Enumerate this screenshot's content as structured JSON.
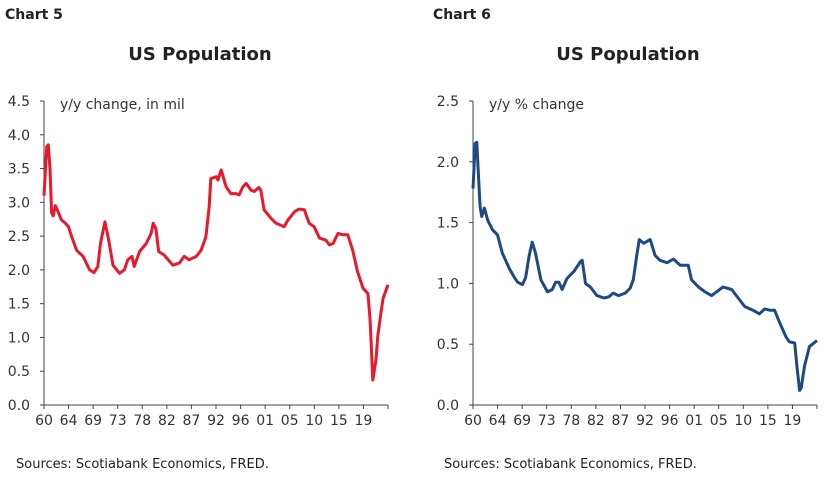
{
  "chart_data": [
    {
      "type": "line",
      "label": "Chart 5",
      "title": "US Population",
      "ylabel": "y/y change, in mil",
      "source": "Sources: Scotiabank Economics, FRED.",
      "xlim": [
        1960,
        2023.3
      ],
      "ylim": [
        0,
        4.5
      ],
      "yticks": [
        "0.0",
        "0.5",
        "1.0",
        "1.5",
        "2.0",
        "2.5",
        "3.0",
        "3.5",
        "4.0",
        "4.5"
      ],
      "xtick_labels": [
        "60",
        "64",
        "69",
        "73",
        "78",
        "82",
        "87",
        "92",
        "96",
        "01",
        "05",
        "10",
        "15",
        "19"
      ],
      "grid": false,
      "color": "#e8192c",
      "series": [
        {
          "x": [
            1960,
            1960.5,
            1960.8,
            1961.1,
            1961.4,
            1961.7,
            1962.1,
            1962.6,
            1963.2,
            1963.8,
            1964.5,
            1965.1,
            1966,
            1967.2,
            1968.4,
            1969.2,
            1969.9,
            1970.4,
            1971.2,
            1971.8,
            1972.7,
            1973.9,
            1974.8,
            1975.4,
            1976.2,
            1976.6,
            1977.6,
            1978.8,
            1979.7,
            1980.1,
            1980.6,
            1981.1,
            1982.1,
            1983.7,
            1984.9,
            1985.8,
            1986.7,
            1988,
            1988.9,
            1989.8,
            1990.4,
            1990.7,
            1991.7,
            1992,
            1992.6,
            1993.5,
            1994.4,
            1995.3,
            1995.9,
            1996.6,
            1997.2,
            1998.1,
            1998.7,
            1999.5,
            1999.9,
            2000.5,
            2001.8,
            2002.7,
            2003.6,
            2004.2,
            2004.9,
            2006.1,
            2006.9,
            2007.9,
            2008.8,
            2009.7,
            2010.7,
            2011.9,
            2012.5,
            2013.2,
            2014.1,
            2015,
            2015.9,
            2016.8,
            2017.7,
            2018.7,
            2019.6,
            2020,
            2020.5,
            2021.1,
            2021.4,
            2022,
            2022.4,
            2023.3
          ],
          "y": [
            3.1,
            3.82,
            3.85,
            3.5,
            2.85,
            2.8,
            2.95,
            2.86,
            2.74,
            2.7,
            2.64,
            2.49,
            2.29,
            2.2,
            2.0,
            1.96,
            2.05,
            2.39,
            2.71,
            2.49,
            2.07,
            1.95,
            2.0,
            2.15,
            2.2,
            2.05,
            2.27,
            2.39,
            2.54,
            2.69,
            2.61,
            2.27,
            2.22,
            2.07,
            2.1,
            2.2,
            2.15,
            2.2,
            2.29,
            2.49,
            2.94,
            3.35,
            3.38,
            3.33,
            3.48,
            3.23,
            3.13,
            3.13,
            3.11,
            3.23,
            3.28,
            3.18,
            3.16,
            3.22,
            3.18,
            2.89,
            2.76,
            2.69,
            2.66,
            2.64,
            2.74,
            2.86,
            2.9,
            2.89,
            2.69,
            2.64,
            2.47,
            2.44,
            2.37,
            2.39,
            2.54,
            2.52,
            2.52,
            2.29,
            1.97,
            1.73,
            1.65,
            1.26,
            0.37,
            0.67,
            1.01,
            1.36,
            1.58,
            1.78
          ]
        }
      ]
    },
    {
      "type": "line",
      "label": "Chart 6",
      "title": "US Population",
      "ylabel": "y/y % change",
      "source": "Sources: Scotiabank Economics, FRED.",
      "xlim": [
        1960,
        2023.3
      ],
      "ylim": [
        0,
        2.5
      ],
      "yticks": [
        "0.0",
        "0.5",
        "1.0",
        "1.5",
        "2.0",
        "2.5"
      ],
      "xtick_labels": [
        "60",
        "64",
        "69",
        "73",
        "78",
        "82",
        "87",
        "92",
        "96",
        "01",
        "05",
        "10",
        "15",
        "19"
      ],
      "grid": false,
      "color": "#1d4a84",
      "series": [
        {
          "x": [
            1960,
            1960.4,
            1960.7,
            1961,
            1961.3,
            1961.6,
            1962.1,
            1962.7,
            1963.6,
            1964.5,
            1965.4,
            1966.7,
            1967.6,
            1968.2,
            1969.1,
            1969.7,
            1970.3,
            1970.9,
            1971.5,
            1972.5,
            1973.7,
            1974.6,
            1975.2,
            1975.8,
            1976.4,
            1977.3,
            1978.6,
            1979.8,
            1980.1,
            1980.7,
            1981.6,
            1982.8,
            1984.1,
            1985,
            1985.8,
            1986.8,
            1988,
            1988.9,
            1989.5,
            1990.2,
            1990.6,
            1991.4,
            1992.6,
            1993.5,
            1994.4,
            1995.7,
            1996.9,
            1998.1,
            1999.6,
            2000.2,
            2001.5,
            2002.7,
            2003.9,
            2004.8,
            2006,
            2007.6,
            2008.8,
            2010,
            2011.5,
            2012.7,
            2013.7,
            2014.6,
            2015.5,
            2016.4,
            2017.6,
            2018.2,
            2019.2,
            2019.6,
            2020.1,
            2020.4,
            2021,
            2021.9,
            2023.3
          ],
          "y": [
            1.78,
            2.15,
            2.16,
            1.9,
            1.63,
            1.55,
            1.62,
            1.52,
            1.44,
            1.4,
            1.25,
            1.12,
            1.05,
            1.01,
            0.99,
            1.05,
            1.22,
            1.34,
            1.25,
            1.03,
            0.93,
            0.95,
            1.01,
            1.01,
            0.95,
            1.04,
            1.1,
            1.18,
            1.19,
            1.0,
            0.97,
            0.9,
            0.88,
            0.89,
            0.92,
            0.9,
            0.92,
            0.96,
            1.03,
            1.25,
            1.36,
            1.33,
            1.36,
            1.23,
            1.19,
            1.17,
            1.2,
            1.15,
            1.15,
            1.03,
            0.97,
            0.93,
            0.9,
            0.93,
            0.97,
            0.95,
            0.88,
            0.81,
            0.78,
            0.75,
            0.79,
            0.78,
            0.78,
            0.68,
            0.56,
            0.52,
            0.51,
            0.32,
            0.12,
            0.14,
            0.32,
            0.48,
            0.53
          ]
        }
      ]
    }
  ]
}
